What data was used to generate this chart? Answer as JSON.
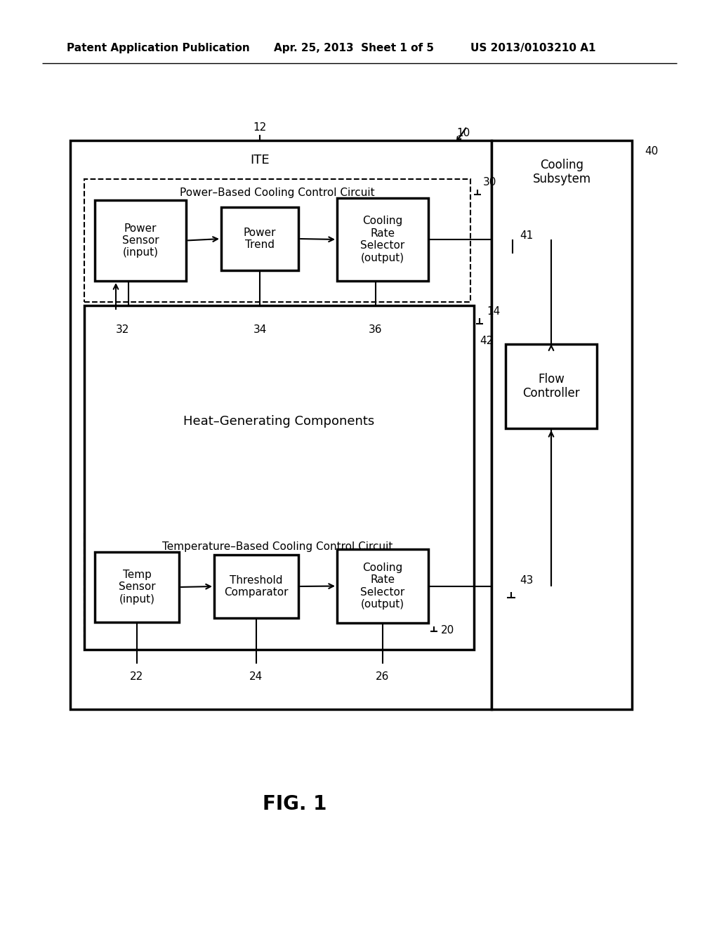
{
  "bg_color": "#ffffff",
  "header_left": "Patent Application Publication",
  "header_mid": "Apr. 25, 2013  Sheet 1 of 5",
  "header_right": "US 2013/0103210 A1",
  "fig_label": "FIG. 1",
  "label_10": "10",
  "label_12": "12",
  "label_14": "14",
  "label_20": "20",
  "label_22": "22",
  "label_24": "24",
  "label_26": "26",
  "label_30": "30",
  "label_32": "32",
  "label_34": "34",
  "label_36": "36",
  "label_40": "40",
  "label_41": "41",
  "label_42": "42",
  "label_43": "43",
  "ite_label": "ITE",
  "cooling_subsystem_label": "Cooling\nSubsytem",
  "pbccc_label": "Power–Based Cooling Control Circuit",
  "hgc_label": "Heat–Generating Components",
  "tbccc_label": "Temperature–Based Cooling Control Circuit",
  "box1_label": "Power\nSensor\n(input)",
  "box2_label": "Power\nTrend",
  "box3_label": "Cooling\nRate\nSelector\n(output)",
  "box4_label": "Flow\nController",
  "box5_label": "Temp\nSensor\n(input)",
  "box6_label": "Threshold\nComparator",
  "box7_label": "Cooling\nRate\nSelector\n(output)"
}
